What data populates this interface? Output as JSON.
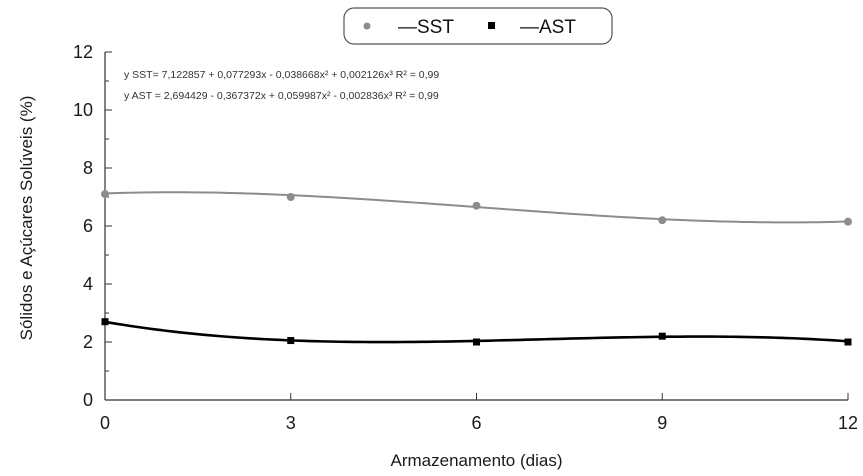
{
  "chart_data": {
    "type": "scatter",
    "title": "",
    "xlabel": "Armazenamento (dias)",
    "ylabel": "Sólidos e Açúcares Solúveis (%)",
    "xlim": [
      0,
      12
    ],
    "ylim": [
      0,
      12
    ],
    "x_ticks": [
      0,
      3,
      6,
      9,
      12
    ],
    "y_ticks": [
      0,
      2,
      4,
      6,
      8,
      10,
      12
    ],
    "x_tick_labels": [
      "0",
      "3",
      "6",
      "9",
      "12"
    ],
    "y_tick_labels": [
      "0",
      "2",
      "4",
      "6",
      "8",
      "10",
      "12"
    ],
    "grid": false,
    "legend_position": "top-center",
    "x": [
      0,
      3,
      6,
      9,
      12
    ],
    "series": [
      {
        "name": "SST",
        "values": [
          7.1,
          7.0,
          6.7,
          6.2,
          6.15
        ],
        "marker": "circle",
        "color": "#8c8c8c",
        "fit": {
          "intercept": 7.122857,
          "b1": 0.077293,
          "b2": -0.038668,
          "b3": 0.002126
        }
      },
      {
        "name": "AST",
        "values": [
          2.7,
          2.05,
          2.0,
          2.2,
          2.0
        ],
        "marker": "square",
        "color": "#000000",
        "fit": {
          "intercept": 2.694429,
          "b1": -0.367372,
          "b2": 0.059987,
          "b3": -0.002836
        }
      }
    ],
    "legend": [
      {
        "marker_label": "•",
        "line_label": "—SST"
      },
      {
        "marker_label": "▪",
        "line_label": "—AST"
      }
    ],
    "annotations": [
      "y SST= 7,122857 + 0,077293x - 0,038668x² + 0,002126x³ R² = 0,99",
      "y AST = 2,694429 - 0,367372x + 0,059987x² - 0,002836x³ R² = 0,99"
    ]
  }
}
